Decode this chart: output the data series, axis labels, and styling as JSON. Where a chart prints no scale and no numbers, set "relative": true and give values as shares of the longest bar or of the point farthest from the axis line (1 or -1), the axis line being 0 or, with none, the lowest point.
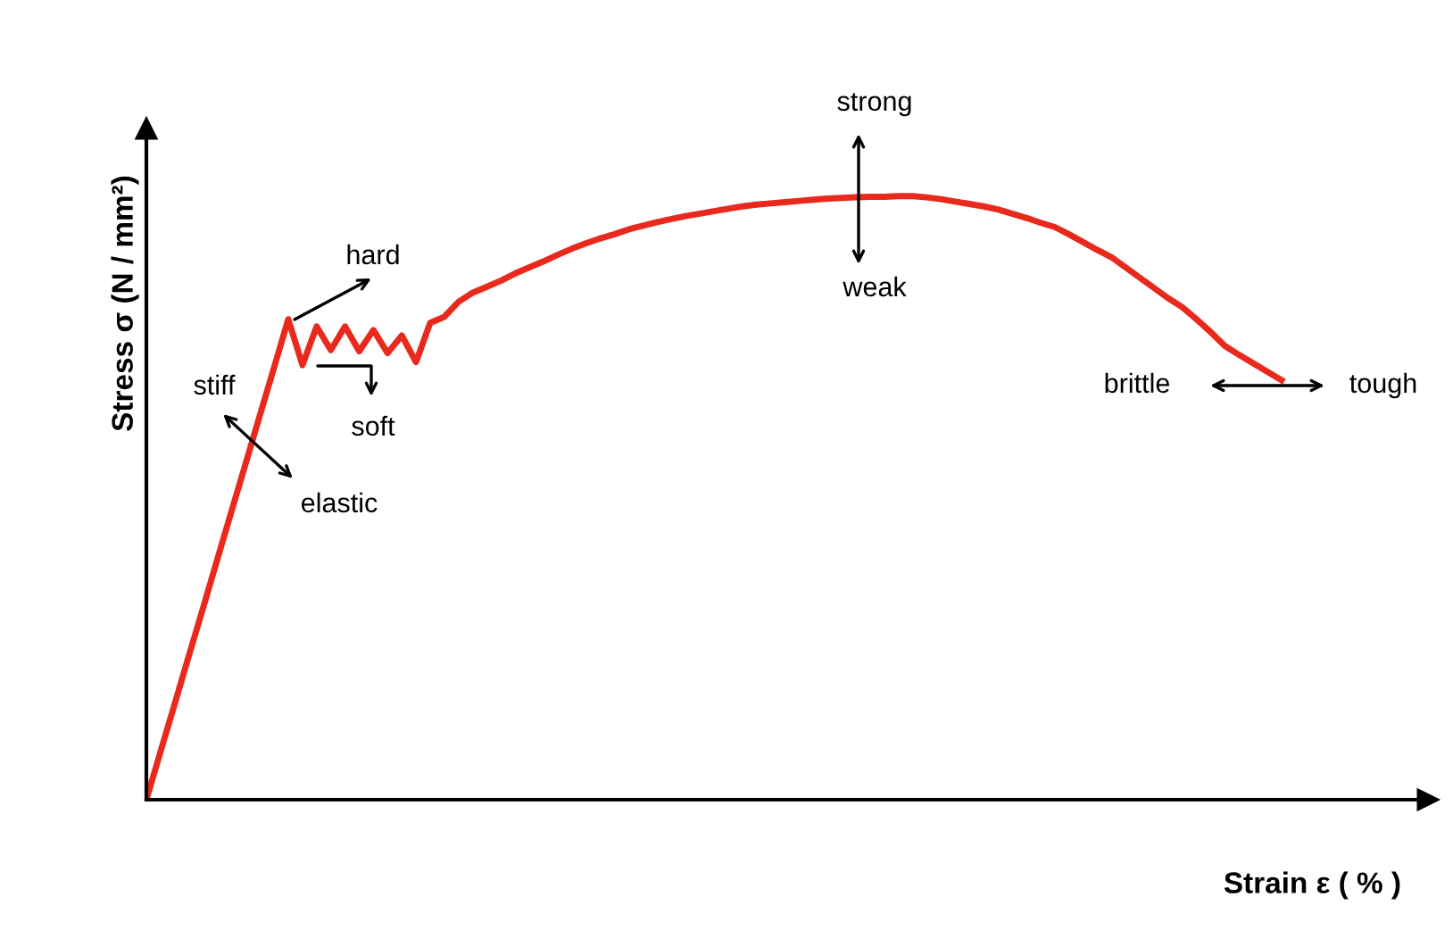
{
  "chart_data": {
    "type": "line",
    "relative": true,
    "xlabel": "Strain ε ( % )",
    "ylabel": "Stress σ (N / mm²)",
    "color": "#e8291c",
    "marker": "none",
    "line_style": "solid",
    "categories": [
      null,
      null,
      null,
      null,
      null,
      null,
      null,
      null,
      null,
      null,
      null,
      null,
      null,
      null,
      null,
      null,
      null,
      null,
      null,
      null,
      null,
      null,
      null,
      null,
      null,
      null,
      null,
      null,
      null,
      null,
      null,
      null,
      null,
      null,
      null,
      null,
      null,
      null,
      null,
      null,
      null,
      null,
      null,
      null,
      null,
      null,
      null,
      null,
      null,
      null,
      null,
      null,
      null,
      null,
      null,
      null,
      null,
      null,
      null,
      null,
      null,
      null,
      null,
      null,
      null,
      null,
      null,
      null,
      null,
      null,
      null,
      null,
      null,
      null,
      null,
      null,
      null,
      null,
      null,
      null,
      null
    ],
    "values": [
      0,
      0.08,
      0.159,
      0.239,
      0.318,
      0.398,
      0.478,
      0.557,
      0.637,
      0.716,
      0.796,
      0.72,
      0.784,
      0.745,
      0.784,
      0.743,
      0.778,
      0.74,
      0.769,
      0.725,
      0.79,
      0.8,
      0.825,
      0.84,
      0.85,
      0.86,
      0.872,
      0.882,
      0.892,
      0.903,
      0.913,
      0.922,
      0.93,
      0.937,
      0.945,
      0.951,
      0.957,
      0.962,
      0.967,
      0.971,
      0.975,
      0.979,
      0.983,
      0.986,
      0.988,
      0.99,
      0.992,
      0.994,
      0.996,
      0.997,
      0.998,
      0.999,
      0.999,
      1.0,
      1.0,
      0.998,
      0.995,
      0.991,
      0.987,
      0.983,
      0.978,
      0.971,
      0.964,
      0.956,
      0.949,
      0.937,
      0.924,
      0.911,
      0.899,
      0.882,
      0.865,
      0.848,
      0.831,
      0.816,
      0.796,
      0.775,
      0.752,
      0.737,
      0.723,
      0.709,
      0.695
    ],
    "annotations": [
      "stiff",
      "elastic",
      "hard",
      "soft",
      "strong",
      "weak",
      "brittle",
      "tough"
    ]
  }
}
